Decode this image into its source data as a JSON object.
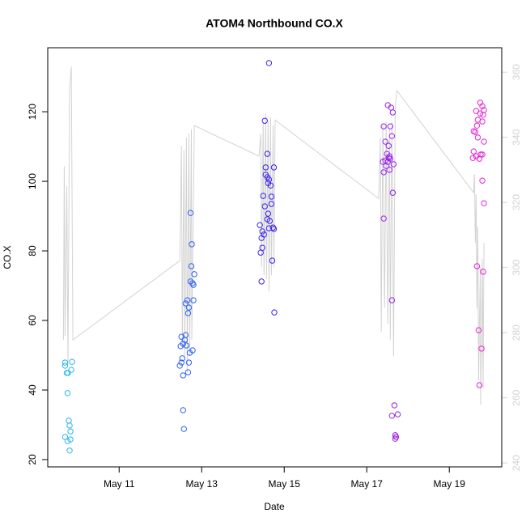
{
  "chart_data": {
    "type": "scatter",
    "title": "ATOM4 Northbound CO.X",
    "x_label": "Date",
    "y_label": "CO.X",
    "xlim": [
      9.27,
      20.27
    ],
    "xticks": [
      {
        "value": 11,
        "label": "May 11"
      },
      {
        "value": 13,
        "label": "May 13"
      },
      {
        "value": 15,
        "label": "May 15"
      },
      {
        "value": 17,
        "label": "May 17"
      },
      {
        "value": 19,
        "label": "May 19"
      }
    ],
    "ylim": [
      17.9,
      138.4
    ],
    "yticks": [
      20,
      40,
      60,
      80,
      100,
      120
    ],
    "y2lim": [
      238.8,
      367.5
    ],
    "y2ticks": [
      240,
      260,
      280,
      300,
      320,
      340,
      360
    ],
    "series": [
      {
        "type": "scatter",
        "color": "#29b6ee",
        "x": [
          9.69,
          9.69,
          9.73,
          9.76,
          9.86,
          9.84,
          9.75,
          9.78,
          9.8,
          9.82,
          9.69,
          9.75,
          9.82,
          9.8
        ],
        "values": [
          47.9,
          47.0,
          44.9,
          44.9,
          48.1,
          45.8,
          39.1,
          31.2,
          29.8,
          28.1,
          26.5,
          25.3,
          25.8,
          22.6
        ]
      },
      {
        "type": "scatter",
        "color": "#2e62f2",
        "x": [
          12.47,
          12.51,
          12.53,
          12.49,
          12.55,
          12.51,
          12.59,
          12.61,
          12.63,
          12.55,
          12.71,
          12.78,
          12.69,
          12.67,
          12.61,
          12.65,
          12.69,
          12.67,
          12.55,
          12.57,
          12.73,
          12.76,
          12.75,
          12.82,
          12.78,
          12.8,
          12.73,
          12.8
        ],
        "values": [
          47.0,
          47.9,
          49.1,
          52.6,
          53.3,
          55.3,
          54.4,
          55.8,
          52.8,
          44.2,
          50.7,
          51.4,
          47.9,
          45.1,
          64.9,
          65.8,
          63.7,
          62.1,
          34.2,
          28.8,
          90.9,
          81.9,
          75.6,
          73.3,
          70.7,
          70.2,
          71.2,
          65.8
        ]
      },
      {
        "type": "scatter",
        "color": "#3d22f0",
        "x": [
          14.63,
          14.53,
          14.59,
          14.55,
          14.75,
          14.55,
          14.59,
          14.63,
          14.61,
          14.67,
          14.49,
          14.69,
          14.53,
          14.69,
          14.61,
          14.65,
          14.59,
          14.41,
          14.73,
          14.75,
          14.47,
          14.51,
          14.45,
          14.63,
          14.47,
          14.43,
          14.71,
          14.45,
          14.76
        ],
        "values": [
          134.0,
          117.4,
          107.9,
          104.0,
          104.0,
          101.9,
          101.2,
          100.5,
          99.5,
          98.8,
          95.8,
          95.6,
          92.8,
          93.5,
          90.7,
          88.6,
          89.1,
          87.4,
          86.7,
          86.3,
          85.6,
          84.7,
          83.7,
          86.5,
          80.9,
          79.5,
          77.2,
          71.2,
          62.3
        ]
      },
      {
        "type": "scatter",
        "color": "#9a22e6",
        "x": [
          17.51,
          17.59,
          17.63,
          17.41,
          17.57,
          17.45,
          17.53,
          17.61,
          17.49,
          17.53,
          17.55,
          17.39,
          17.45,
          17.51,
          17.47,
          17.57,
          17.65,
          17.41,
          17.55,
          17.63,
          17.41,
          17.61,
          17.67,
          17.75,
          17.61,
          17.69,
          17.71,
          17.69
        ],
        "values": [
          121.9,
          121.2,
          119.8,
          115.8,
          115.8,
          111.4,
          110.2,
          113.0,
          107.9,
          106.7,
          107.2,
          105.6,
          106.0,
          105.6,
          104.4,
          106.5,
          104.9,
          102.6,
          103.3,
          96.7,
          89.3,
          65.8,
          35.6,
          33.0,
          32.6,
          27.0,
          26.5,
          26.0
        ]
      },
      {
        "type": "scatter",
        "color": "#e622d8",
        "x": [
          19.75,
          19.8,
          19.84,
          19.65,
          19.75,
          19.82,
          19.69,
          19.8,
          19.67,
          19.59,
          19.63,
          19.69,
          19.84,
          19.59,
          19.65,
          19.76,
          19.8,
          19.57,
          19.73,
          19.8,
          19.84,
          19.67,
          19.82,
          19.71,
          19.78,
          19.73
        ],
        "values": [
          122.6,
          121.6,
          120.5,
          120.2,
          119.5,
          119.1,
          117.7,
          117.2,
          116.0,
          114.4,
          114.2,
          112.6,
          111.4,
          108.6,
          107.2,
          107.7,
          107.7,
          106.7,
          106.5,
          100.2,
          93.7,
          75.6,
          74.0,
          57.2,
          51.9,
          41.4
        ]
      },
      {
        "type": "line",
        "axis": "y2",
        "color": "#d3d3d3",
        "x": [
          9.65,
          9.67,
          9.69,
          9.73,
          9.76,
          9.8,
          9.84,
          9.88,
          12.47,
          12.51,
          12.53,
          12.57,
          12.59,
          12.63,
          12.65,
          12.69,
          12.71,
          12.75,
          12.76,
          12.82,
          14.39,
          14.43,
          14.45,
          14.49,
          14.51,
          14.55,
          14.57,
          14.61,
          14.63,
          14.67,
          14.69,
          14.73,
          14.75,
          14.78,
          17.29,
          17.33,
          17.35,
          17.39,
          17.43,
          17.47,
          17.51,
          17.55,
          17.57,
          17.61,
          17.65,
          17.69,
          17.73,
          19.59,
          19.61,
          19.63,
          19.65,
          19.67,
          19.69,
          19.71,
          19.75,
          19.76,
          19.8,
          19.82,
          19.84
        ],
        "values": [
          277.8,
          331.2,
          279.0,
          325.0,
          270.3,
          354.8,
          361.7,
          277.8,
          302.1,
          337.4,
          275.3,
          336.1,
          272.8,
          339.9,
          267.8,
          341.1,
          272.8,
          342.4,
          277.8,
          343.6,
          334.2,
          341.1,
          300.1,
          344.8,
          297.6,
          347.3,
          296.4,
          344.8,
          292.7,
          346.1,
          297.6,
          343.6,
          300.1,
          345.3,
          321.2,
          339.9,
          280.2,
          343.6,
          287.7,
          344.8,
          282.7,
          342.4,
          277.8,
          344.8,
          272.8,
          349.8,
          354.3,
          323.0,
          328.7,
          307.6,
          322.5,
          287.7,
          312.5,
          265.3,
          300.1,
          257.9,
          302.6,
          262.9,
          307.6
        ]
      }
    ]
  }
}
